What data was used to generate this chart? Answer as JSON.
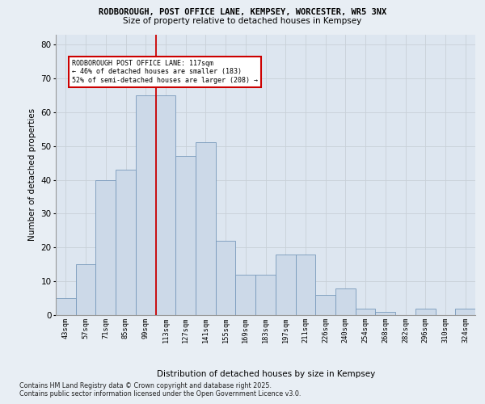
{
  "title1": "RODBOROUGH, POST OFFICE LANE, KEMPSEY, WORCESTER, WR5 3NX",
  "title2": "Size of property relative to detached houses in Kempsey",
  "xlabel": "Distribution of detached houses by size in Kempsey",
  "ylabel": "Number of detached properties",
  "categories": [
    "43sqm",
    "57sqm",
    "71sqm",
    "85sqm",
    "99sqm",
    "113sqm",
    "127sqm",
    "141sqm",
    "155sqm",
    "169sqm",
    "183sqm",
    "197sqm",
    "211sqm",
    "226sqm",
    "240sqm",
    "254sqm",
    "268sqm",
    "282sqm",
    "296sqm",
    "310sqm",
    "324sqm"
  ],
  "values": [
    5,
    15,
    40,
    43,
    65,
    65,
    47,
    51,
    22,
    12,
    12,
    18,
    18,
    6,
    8,
    2,
    1,
    0,
    2,
    0,
    2
  ],
  "bar_color": "#ccd9e8",
  "bar_edge_color": "#7799bb",
  "marker_label_line1": "RODBOROUGH POST OFFICE LANE: 117sqm",
  "marker_label_line2": "← 46% of detached houses are smaller (183)",
  "marker_label_line3": "52% of semi-detached houses are larger (208) →",
  "annotation_box_color": "#ffffff",
  "annotation_box_edge": "#cc0000",
  "marker_line_color": "#cc0000",
  "ylim": [
    0,
    83
  ],
  "yticks": [
    0,
    10,
    20,
    30,
    40,
    50,
    60,
    70,
    80
  ],
  "grid_color": "#c8d0d8",
  "bg_color": "#dde6f0",
  "fig_bg_color": "#e8eef4",
  "footer_line1": "Contains HM Land Registry data © Crown copyright and database right 2025.",
  "footer_line2": "Contains public sector information licensed under the Open Government Licence v3.0."
}
